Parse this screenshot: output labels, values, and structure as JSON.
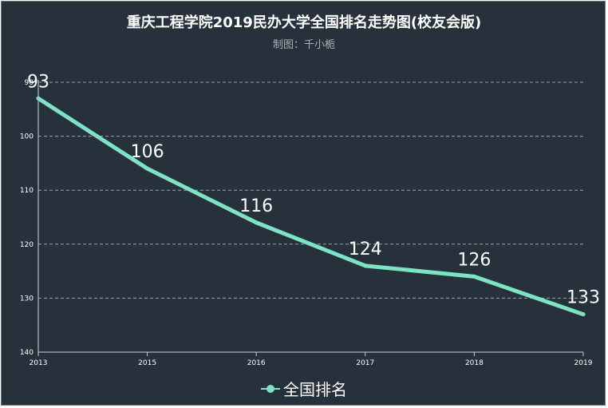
{
  "title": "重庆工程学院2019民办大学全国排名走势图(校友会版)",
  "subtitle": "制图：千小栀",
  "colors": {
    "background": "#27313c",
    "line": "#7ee3c5",
    "axis": "#c9ced3",
    "grid": "#9aa1a8",
    "text": "#ffffff"
  },
  "chart_data": {
    "type": "line",
    "title": "重庆工程学院2019民办大学全国排名走势图(校友会版)",
    "subtitle": "制图：千小栀",
    "categories": [
      "2013",
      "2015",
      "2016",
      "2017",
      "2018",
      "2019"
    ],
    "series": [
      {
        "name": "全国排名",
        "values": [
          93,
          106,
          116,
          124,
          126,
          133
        ]
      }
    ],
    "ylim": [
      90,
      140
    ],
    "yaxis_inverted": true,
    "yticks": [
      90,
      100,
      110,
      120,
      130,
      140
    ],
    "grid": "horizontal-dashed",
    "legend": "bottom-center",
    "xlabel": "",
    "ylabel": ""
  }
}
